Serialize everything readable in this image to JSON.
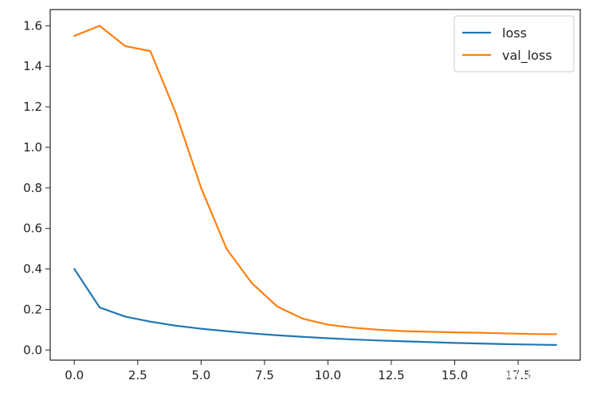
{
  "chart_data": {
    "type": "line",
    "title": "",
    "xlabel": "",
    "ylabel": "",
    "xlim": [
      -0.95,
      19.95
    ],
    "ylim": [
      -0.05,
      1.68
    ],
    "grid": false,
    "legend_position": "top-right",
    "x": [
      0,
      1,
      2,
      3,
      4,
      5,
      6,
      7,
      8,
      9,
      10,
      11,
      12,
      13,
      14,
      15,
      16,
      17,
      18,
      19
    ],
    "xticks": [
      0,
      2.5,
      5,
      7.5,
      10,
      12.5,
      15,
      17.5
    ],
    "xtick_labels": [
      "0.0",
      "2.5",
      "5.0",
      "7.5",
      "10.0",
      "12.5",
      "15.0",
      "17.5"
    ],
    "yticks": [
      0,
      0.2,
      0.4,
      0.6,
      0.8,
      1.0,
      1.2,
      1.4,
      1.6
    ],
    "ytick_labels": [
      "0.0",
      "0.2",
      "0.4",
      "0.6",
      "0.8",
      "1.0",
      "1.2",
      "1.4",
      "1.6"
    ],
    "series": [
      {
        "name": "loss",
        "color": "#1f77b4",
        "values": [
          0.4,
          0.21,
          0.165,
          0.14,
          0.12,
          0.105,
          0.093,
          0.082,
          0.073,
          0.065,
          0.058,
          0.052,
          0.047,
          0.043,
          0.039,
          0.035,
          0.032,
          0.029,
          0.027,
          0.025
        ]
      },
      {
        "name": "val_loss",
        "color": "#ff7f0e",
        "values": [
          1.55,
          1.6,
          1.5,
          1.475,
          1.17,
          0.8,
          0.5,
          0.33,
          0.215,
          0.155,
          0.125,
          0.11,
          0.1,
          0.093,
          0.09,
          0.087,
          0.085,
          0.082,
          0.079,
          0.078
        ]
      }
    ]
  },
  "watermark": {
    "text": "@稀土掘金技术社区"
  }
}
